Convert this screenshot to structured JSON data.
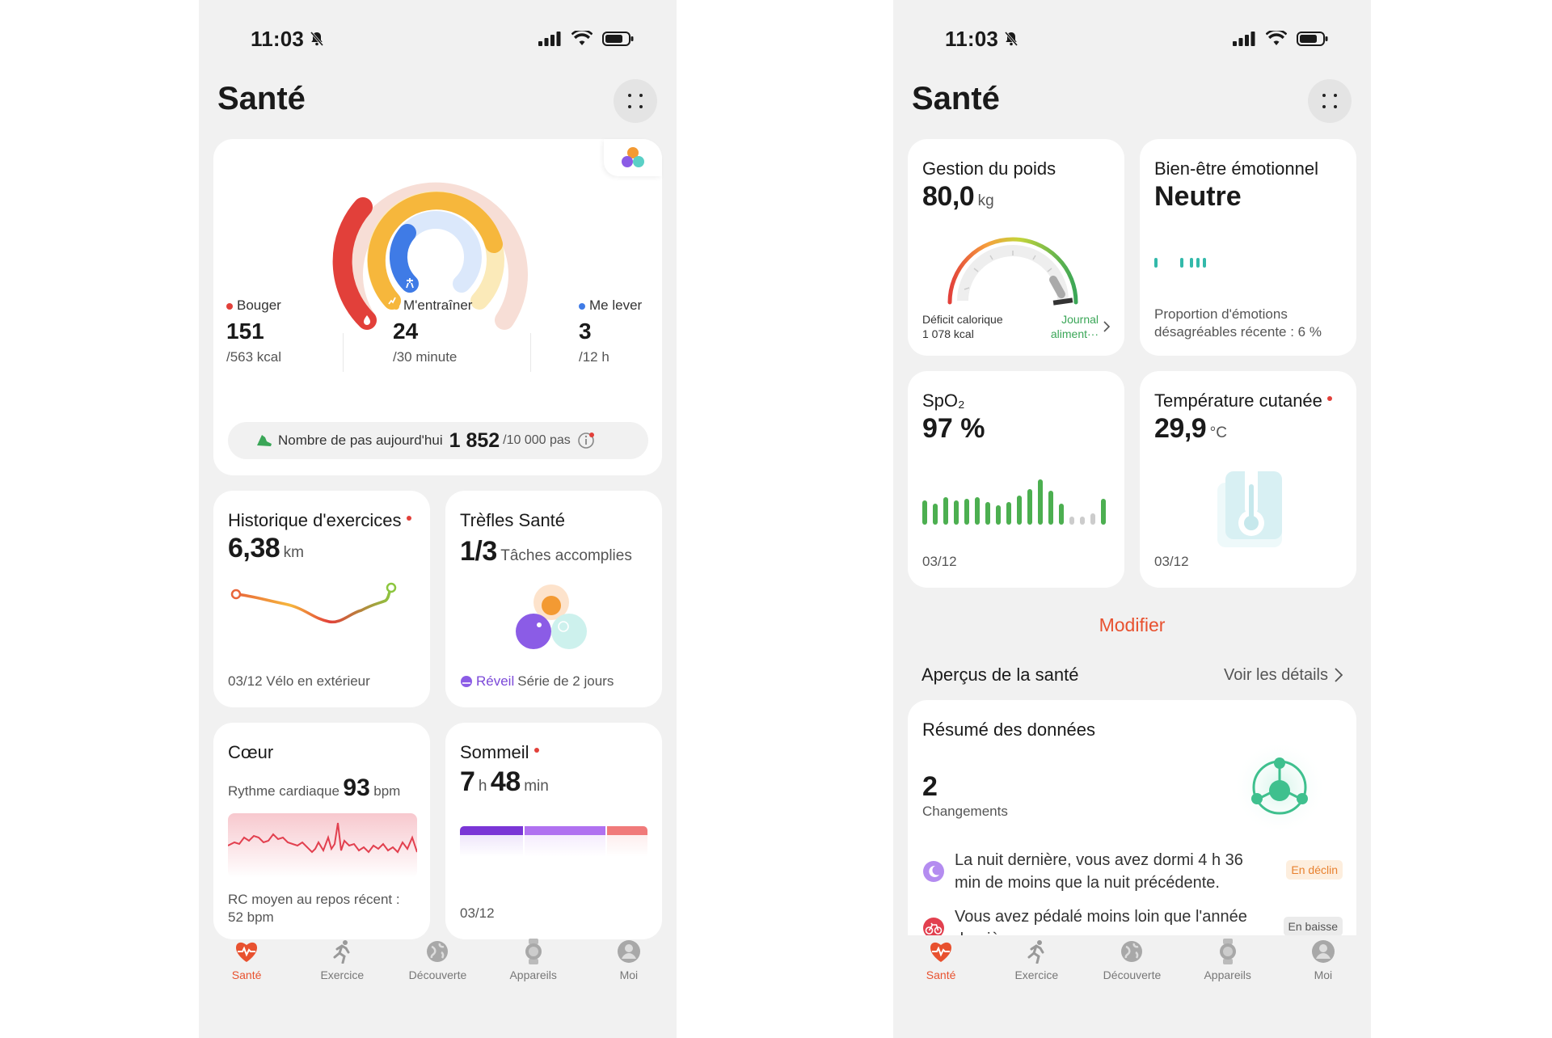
{
  "status": {
    "time": "11:03"
  },
  "app_title": "Santé",
  "activity": {
    "bouger_label": "Bouger",
    "bouger_value": "151",
    "bouger_goal": "/563 kcal",
    "entrainer_label": "M'entraîner",
    "entrainer_value": "24",
    "entrainer_goal": "/30 minute",
    "lever_label": "Me lever",
    "lever_value": "3",
    "lever_goal": "/12 h",
    "steps_label": "Nombre de pas aujourd'hui",
    "steps_value": "1 852",
    "steps_goal": "/10 000 pas"
  },
  "exercise": {
    "title": "Historique d'exercices",
    "value": "6,38",
    "unit": "km",
    "footer": "03/12 Vélo en extérieur"
  },
  "clovers": {
    "title": "Trèfles Santé",
    "value": "1/3",
    "unit": "Tâches accomplies",
    "footer_accent": "Réveil",
    "footer": "Série de 2 jours"
  },
  "heart": {
    "title": "Cœur",
    "label": "Rythme cardiaque",
    "value": "93",
    "unit": "bpm",
    "footer_line1": "RC moyen au repos récent :",
    "footer_line2": "52 bpm"
  },
  "sleep": {
    "title": "Sommeil",
    "hours": "7",
    "h_unit": "h",
    "minutes": "48",
    "min_unit": "min",
    "date": "03/12"
  },
  "weight": {
    "title": "Gestion du poids",
    "value": "80,0",
    "unit": "kg",
    "deficit_label": "Déficit calorique",
    "deficit_value": "1 078 kcal",
    "journal_line1": "Journal",
    "journal_line2": "aliment···"
  },
  "emotion": {
    "title": "Bien-être émotionnel",
    "value": "Neutre",
    "footer_line1": "Proportion d'émotions",
    "footer_line2": "désagréables récente : 6 %"
  },
  "spo2": {
    "title": "SpO₂",
    "value": "97 %",
    "date": "03/12"
  },
  "skin": {
    "title": "Température cutanée",
    "value": "29,9",
    "unit": "°C",
    "date": "03/12"
  },
  "modify_label": "Modifier",
  "insights": {
    "title": "Aperçus de la santé",
    "details": "Voir les détails"
  },
  "summary": {
    "title": "Résumé des données",
    "count": "2",
    "count_label": "Changements",
    "items": [
      {
        "line1": "La nuit dernière, vous avez dormi 4 h 36",
        "line2": "min de moins que la nuit précédente.",
        "badge": "En déclin"
      },
      {
        "line1": "Vous avez pédalé moins loin que l'année",
        "line2": "dernière",
        "badge": "En baisse"
      }
    ]
  },
  "nav": {
    "items": [
      "Santé",
      "Exercice",
      "Découverte",
      "Appareils",
      "Moi"
    ]
  },
  "colors": {
    "accent": "#e8512f",
    "move": "#e2403a",
    "exercise": "#f6b73c",
    "stand": "#3f7be6",
    "green": "#4caf50"
  }
}
